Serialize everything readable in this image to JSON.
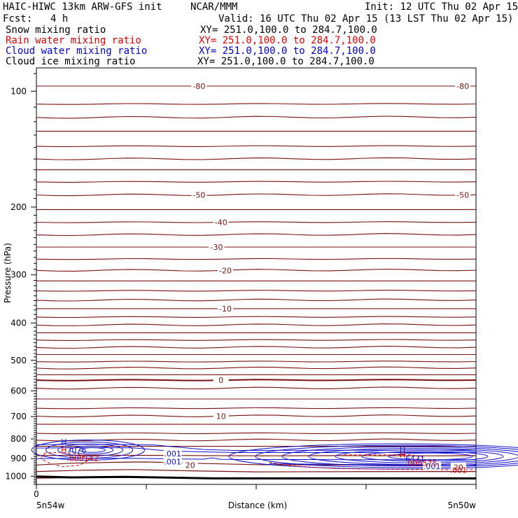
{
  "header": {
    "title": "HAIC-HIWC 13km ARW-GFS init",
    "org": "NCAR/MMM",
    "init": "Init: 12 UTC Thu 02 Apr 15",
    "fcst_label": "Fcst:",
    "fcst_value": "4 h",
    "valid": "Valid: 16 UTC Thu 02 Apr 15 (13 LST Thu 02 Apr 15)"
  },
  "legend": [
    {
      "name": "Snow mixing ratio",
      "xy": "XY= 251.0,100.0 to 284.7,100.0",
      "color": "#000000"
    },
    {
      "name": "Rain water mixing ratio",
      "xy": "XY= 251.0,100.0 to 284.7,100.0",
      "color": "#dd0000"
    },
    {
      "name": "Cloud water mixing ratio",
      "xy": "XY= 251.0,100.0 to 284.7,100.0",
      "color": "#0000cc"
    },
    {
      "name": "Cloud ice mixing ratio",
      "xy": "XY= 251.0,100.0 to 284.7,100.0",
      "color": "#000000"
    }
  ],
  "colors": {
    "temperature": "#7a1010",
    "rain": "#dd0000",
    "cloud": "#1010cc",
    "ground": "#000000"
  },
  "chart_data": {
    "type": "line",
    "ylabel": "Pressure (hPa)",
    "xlabel": "Distance (km)",
    "y_scale": "log",
    "ylim": [
      1050,
      87
    ],
    "xlim": [
      0,
      100
    ],
    "y_ticks": [
      100,
      200,
      300,
      400,
      500,
      600,
      700,
      800,
      900,
      1000
    ],
    "x_ticks": [
      0,
      25,
      50,
      75,
      100
    ],
    "x_tick_labels": [
      "0",
      "",
      "",
      "",
      ""
    ],
    "x_end_labels": [
      "5n54w",
      "5n50w"
    ],
    "temperature_contours": [
      {
        "label": "-80",
        "p": 97
      },
      {
        "label": "-50",
        "p": 186
      },
      {
        "label": "-40",
        "p": 219
      },
      {
        "label": "-30",
        "p": 254
      },
      {
        "label": "-20",
        "p": 292
      },
      {
        "label": "-10",
        "p": 367
      },
      {
        "label": "0",
        "p": 563
      },
      {
        "label": "10",
        "p": 698
      },
      {
        "label": "20",
        "p": 935
      }
    ],
    "contour_inline_labels": [
      {
        "text": "-80",
        "x": 37,
        "p": 97
      },
      {
        "text": "-80",
        "x": 97,
        "p": 97
      },
      {
        "text": "-50",
        "x": 37,
        "p": 186
      },
      {
        "text": "-50",
        "x": 97,
        "p": 186
      },
      {
        "text": "-40",
        "x": 42,
        "p": 219
      },
      {
        "text": "-30",
        "x": 41,
        "p": 254
      },
      {
        "text": "-20",
        "x": 43,
        "p": 292
      },
      {
        "text": "-10",
        "x": 43,
        "p": 367
      },
      {
        "text": "0",
        "x": 42,
        "p": 563
      },
      {
        "text": "10",
        "x": 42,
        "p": 698
      },
      {
        "text": "20",
        "x": 35,
        "p": 935
      },
      {
        "text": "20",
        "x": 96,
        "p": 948
      }
    ],
    "cloud_water_labels": [
      {
        "text": ".001",
        "x": 31,
        "p": 874
      },
      {
        "text": ".001",
        "x": 31,
        "p": 916
      },
      {
        "text": ".001",
        "x": 90,
        "p": 942
      }
    ],
    "rain_labels": [
      {
        "text": ".001",
        "x": 96,
        "p": 963
      }
    ],
    "maxima": [
      {
        "symbol": "H",
        "value": "7076",
        "x": 5,
        "p": 855,
        "color": "blue"
      },
      {
        "symbol": "H",
        "value": ".008142",
        "x": 5,
        "p": 897,
        "color": "red"
      },
      {
        "symbol": "H",
        "value": "6471",
        "x": 82,
        "p": 900,
        "color": "blue"
      },
      {
        "symbol": "H",
        "value": ".005575",
        "x": 82,
        "p": 924,
        "color": "red"
      }
    ]
  }
}
